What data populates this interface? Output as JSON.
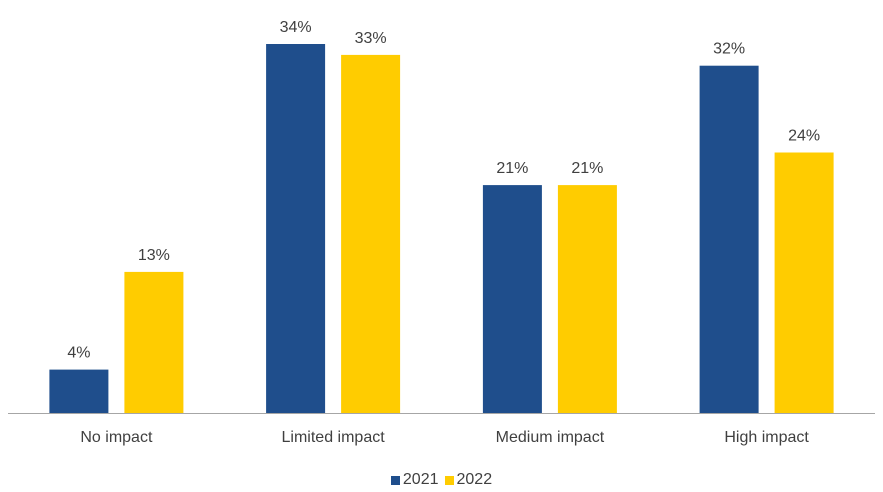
{
  "chart_data": {
    "type": "bar",
    "categories": [
      "No impact",
      "Limited impact",
      "Medium impact",
      "High impact"
    ],
    "series": [
      {
        "name": "2021",
        "values": [
          4,
          34,
          21,
          32
        ],
        "labels": [
          "4%",
          "34%",
          "21%",
          "32%"
        ],
        "color": "#1F4E8C"
      },
      {
        "name": "2022",
        "values": [
          13,
          33,
          21,
          24
        ],
        "labels": [
          "13%",
          "33%",
          "21%",
          "24%"
        ],
        "color": "#FFCC00"
      }
    ],
    "ylim": [
      0,
      34
    ],
    "grid": false,
    "legend_position": "bottom"
  }
}
